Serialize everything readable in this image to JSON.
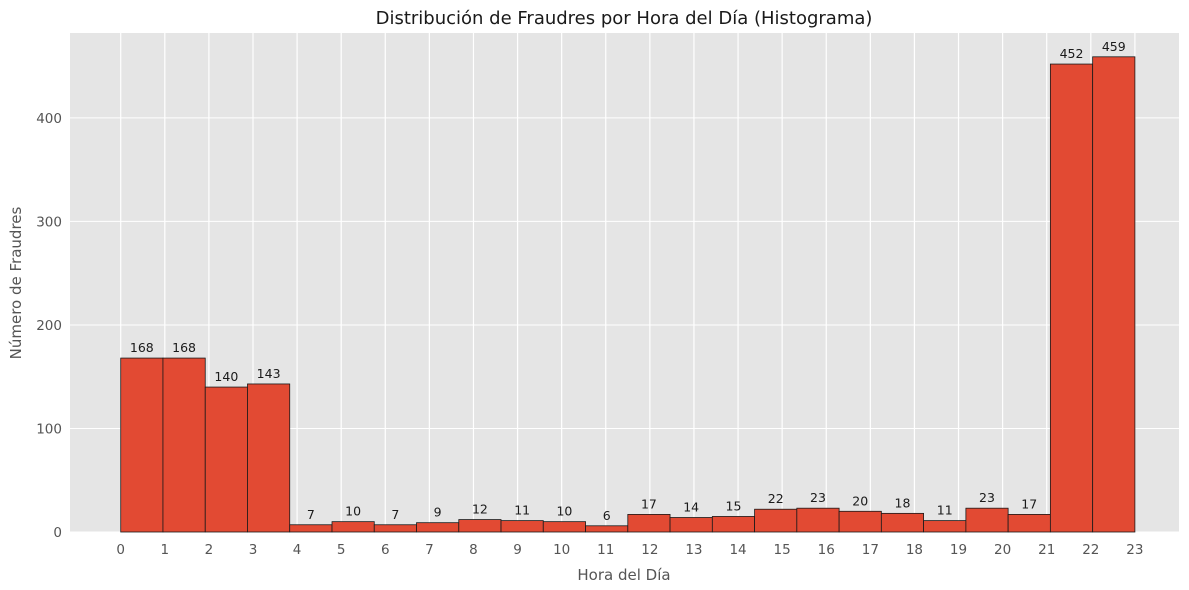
{
  "chart_data": {
    "type": "bar",
    "title": "Distribución de Fraudres por Hora del Día (Histograma)",
    "xlabel": "Hora del Día",
    "ylabel": "Número de Fraudres",
    "x_ticks": [
      "0",
      "1",
      "2",
      "3",
      "4",
      "5",
      "6",
      "7",
      "8",
      "9",
      "10",
      "11",
      "12",
      "13",
      "14",
      "15",
      "16",
      "17",
      "18",
      "19",
      "20",
      "21",
      "22",
      "23"
    ],
    "y_ticks": [
      "0",
      "100",
      "200",
      "300",
      "400"
    ],
    "xlim": [
      -1.15,
      24.0
    ],
    "ylim": [
      0,
      482
    ],
    "bin_edges": [
      0,
      0.958,
      1.917,
      2.875,
      3.833,
      4.792,
      5.75,
      6.708,
      7.667,
      8.625,
      9.583,
      10.542,
      11.5,
      12.458,
      13.417,
      14.375,
      15.333,
      16.292,
      17.25,
      18.208,
      19.167,
      20.125,
      21.083,
      22.042,
      23
    ],
    "values": [
      168,
      168,
      140,
      143,
      7,
      10,
      7,
      9,
      12,
      11,
      10,
      6,
      17,
      14,
      15,
      22,
      23,
      20,
      18,
      11,
      23,
      17,
      452,
      459
    ],
    "data_labels": [
      "168",
      "168",
      "140",
      "143",
      "7",
      "10",
      "7",
      "9",
      "12",
      "11",
      "10",
      "6",
      "17",
      "14",
      "15",
      "22",
      "23",
      "20",
      "18",
      "11",
      "23",
      "17",
      "452",
      "459"
    ],
    "grid": true,
    "colors": {
      "bar": "#e24a33",
      "bar_edge": "#1a1a1a",
      "plot_background": "#e5e5e5",
      "grid": "#ffffff"
    }
  }
}
